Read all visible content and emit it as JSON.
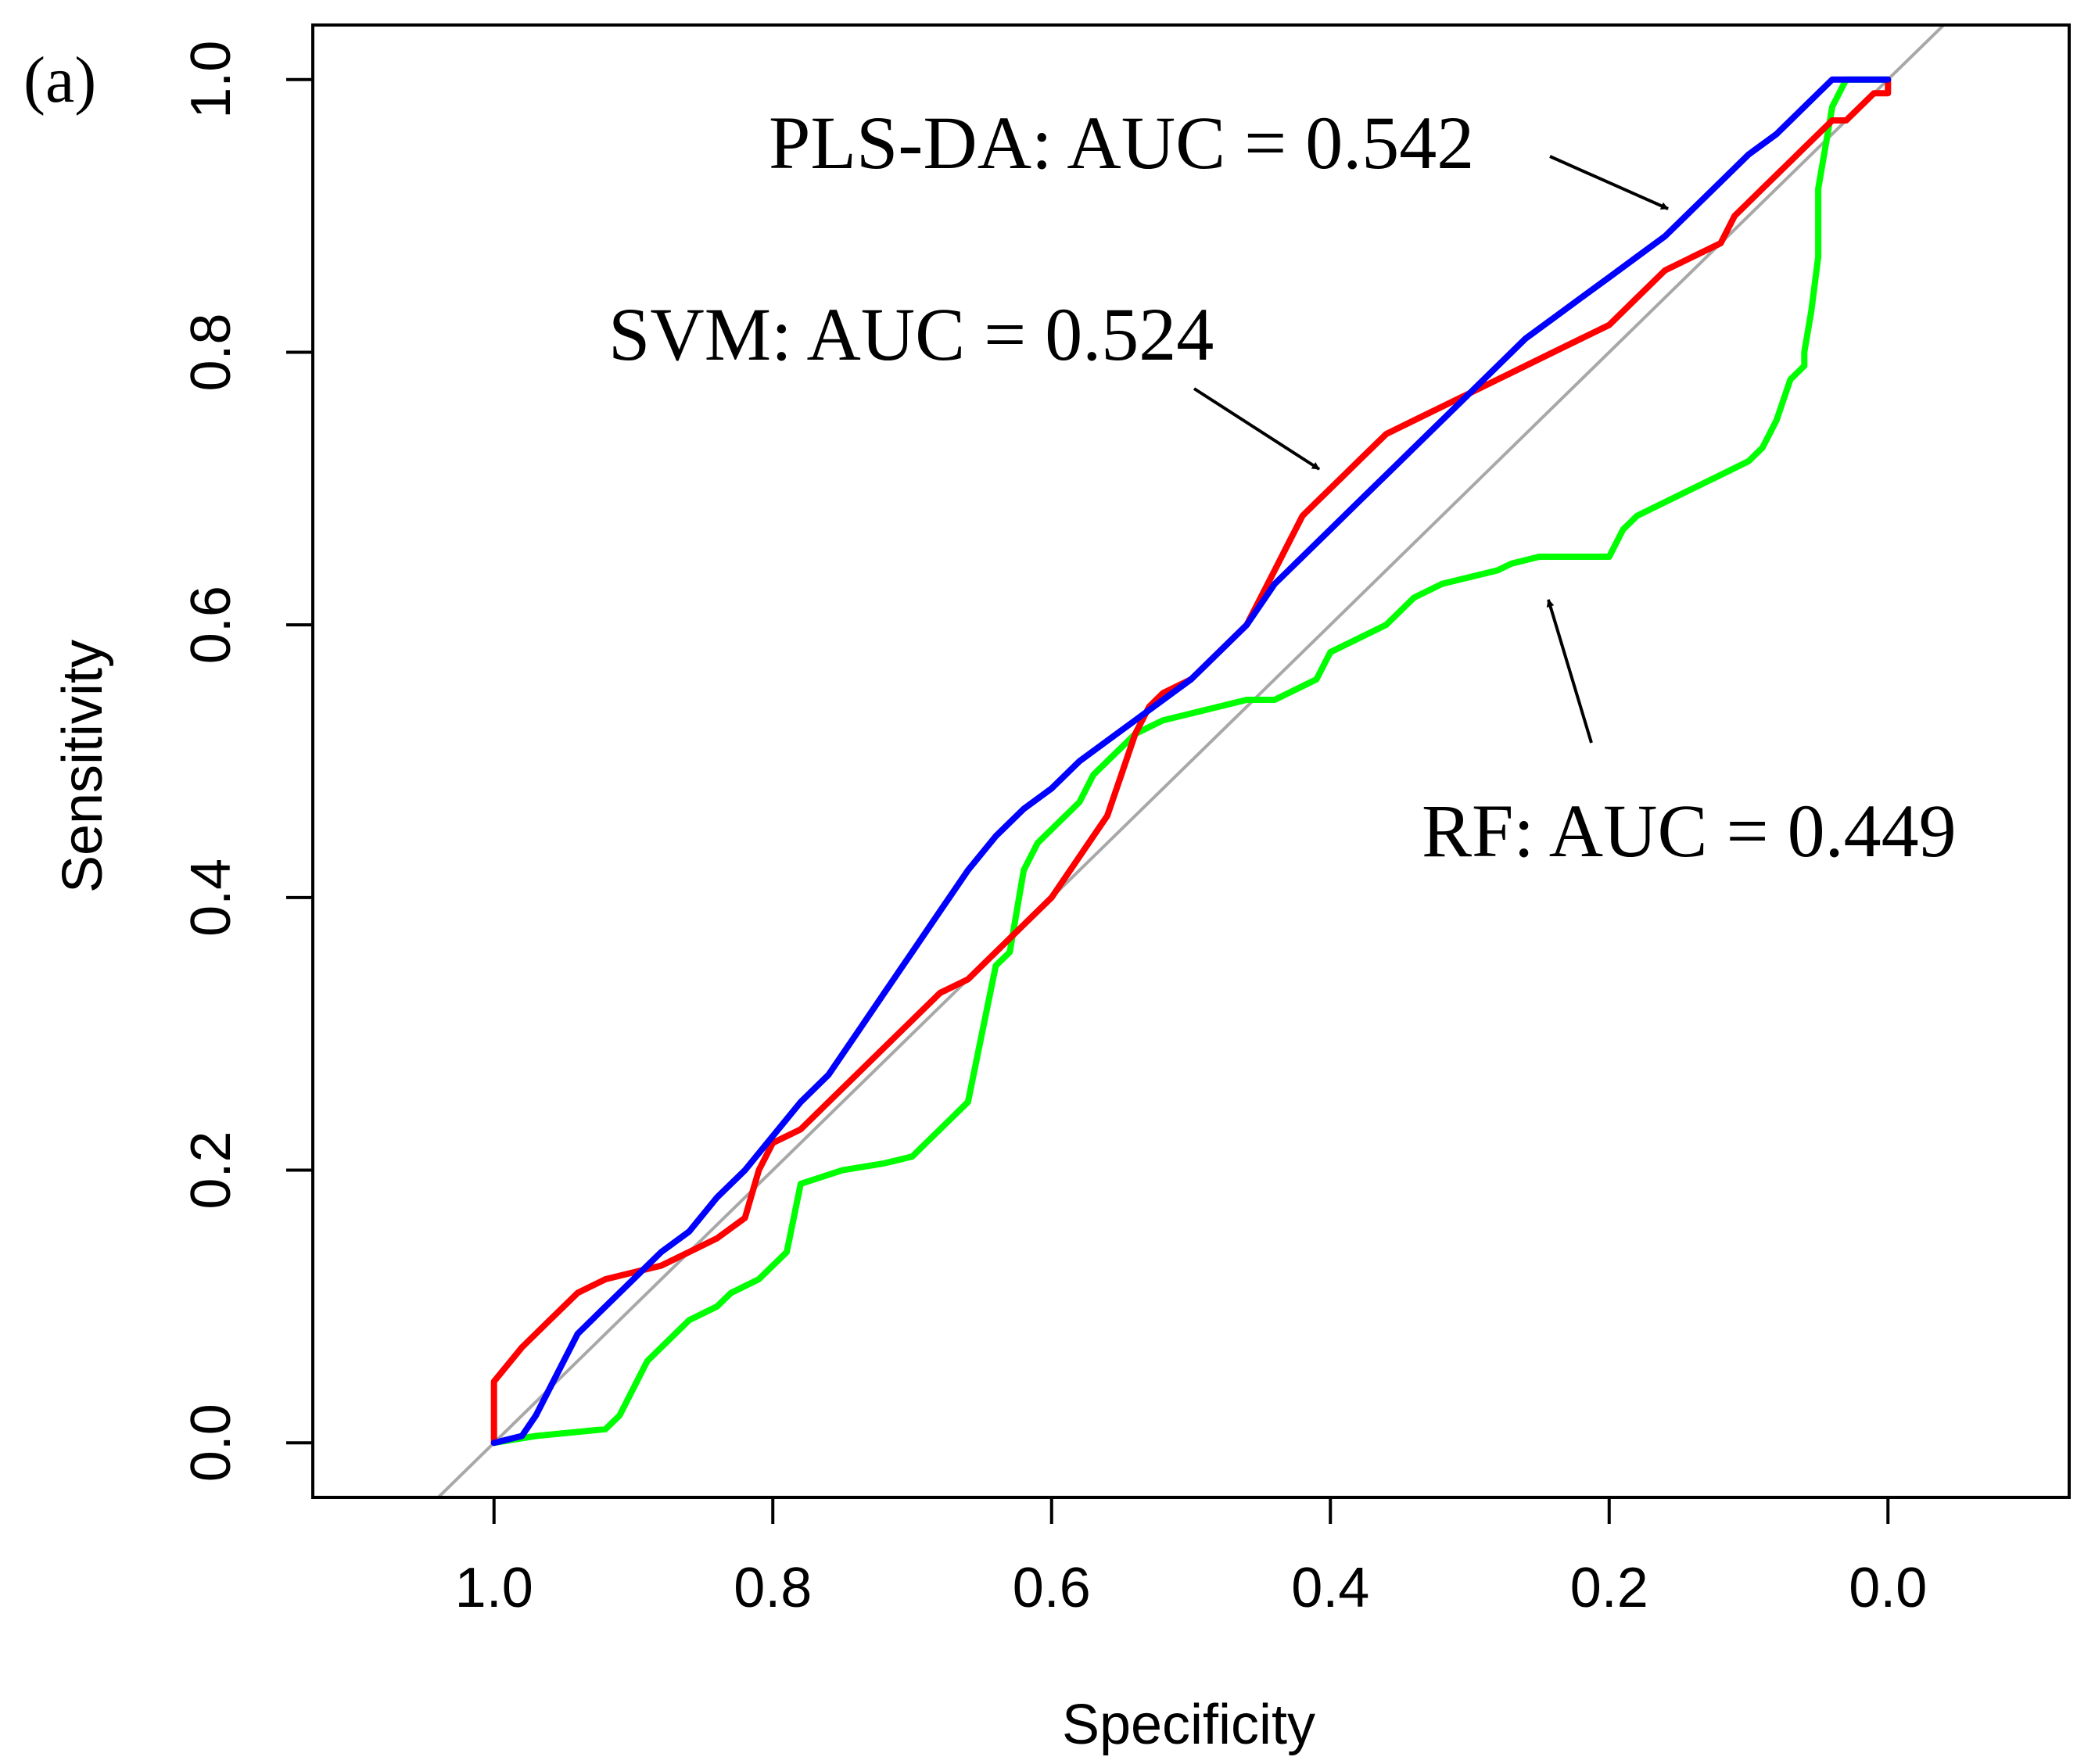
{
  "panel_label": "(a)",
  "chart_data": {
    "type": "line",
    "title": "",
    "xlabel": "Specificity",
    "ylabel": "Sensitivity",
    "x_reversed": true,
    "xlim": [
      1.13,
      -0.13
    ],
    "ylim": [
      -0.04,
      1.04
    ],
    "xticks": [
      1.0,
      0.8,
      0.6,
      0.4,
      0.2,
      0.0
    ],
    "xtick_labels": [
      "1.0",
      "0.8",
      "0.6",
      "0.4",
      "0.2",
      "0.0"
    ],
    "yticks": [
      0.0,
      0.2,
      0.4,
      0.6,
      0.8,
      1.0
    ],
    "ytick_labels": [
      "0.0",
      "0.2",
      "0.4",
      "0.6",
      "0.8",
      "1.0"
    ],
    "reference_line": {
      "from": [
        1.0,
        0.0
      ],
      "to": [
        0.0,
        1.0
      ],
      "color": "#a8a8a8"
    },
    "series": [
      {
        "name": "RF",
        "color": "#00ff00",
        "x": [
          1.0,
          0.97,
          0.92,
          0.91,
          0.9,
          0.89,
          0.88,
          0.87,
          0.86,
          0.85,
          0.84,
          0.83,
          0.82,
          0.81,
          0.8,
          0.79,
          0.78,
          0.75,
          0.72,
          0.7,
          0.69,
          0.68,
          0.66,
          0.65,
          0.64,
          0.63,
          0.62,
          0.61,
          0.6,
          0.59,
          0.58,
          0.57,
          0.56,
          0.55,
          0.54,
          0.53,
          0.52,
          0.5,
          0.48,
          0.46,
          0.44,
          0.43,
          0.41,
          0.4,
          0.38,
          0.36,
          0.35,
          0.34,
          0.32,
          0.28,
          0.27,
          0.25,
          0.2,
          0.19,
          0.18,
          0.16,
          0.14,
          0.12,
          0.1,
          0.09,
          0.08,
          0.07,
          0.06,
          0.06,
          0.055,
          0.05,
          0.05,
          0.045,
          0.04,
          0.03,
          0.0
        ],
        "y": [
          0.0,
          0.005,
          0.01,
          0.02,
          0.04,
          0.06,
          0.07,
          0.08,
          0.09,
          0.095,
          0.1,
          0.11,
          0.115,
          0.12,
          0.13,
          0.14,
          0.19,
          0.2,
          0.205,
          0.21,
          0.22,
          0.23,
          0.25,
          0.3,
          0.35,
          0.36,
          0.42,
          0.44,
          0.45,
          0.46,
          0.47,
          0.49,
          0.5,
          0.51,
          0.52,
          0.525,
          0.53,
          0.535,
          0.54,
          0.545,
          0.545,
          0.55,
          0.56,
          0.58,
          0.59,
          0.6,
          0.61,
          0.62,
          0.63,
          0.64,
          0.645,
          0.65,
          0.65,
          0.67,
          0.68,
          0.69,
          0.7,
          0.71,
          0.72,
          0.73,
          0.75,
          0.78,
          0.79,
          0.8,
          0.83,
          0.87,
          0.92,
          0.95,
          0.98,
          1.0,
          1.0
        ]
      },
      {
        "name": "SVM",
        "color": "#ff0000",
        "x": [
          1.0,
          1.0,
          0.98,
          0.96,
          0.94,
          0.92,
          0.9,
          0.88,
          0.86,
          0.84,
          0.82,
          0.81,
          0.8,
          0.79,
          0.78,
          0.76,
          0.74,
          0.72,
          0.7,
          0.68,
          0.66,
          0.64,
          0.62,
          0.6,
          0.58,
          0.56,
          0.55,
          0.54,
          0.53,
          0.52,
          0.5,
          0.48,
          0.46,
          0.45,
          0.44,
          0.43,
          0.42,
          0.41,
          0.4,
          0.39,
          0.38,
          0.36,
          0.34,
          0.32,
          0.3,
          0.28,
          0.26,
          0.24,
          0.22,
          0.2,
          0.18,
          0.16,
          0.14,
          0.12,
          0.11,
          0.1,
          0.09,
          0.08,
          0.07,
          0.06,
          0.05,
          0.04,
          0.03,
          0.02,
          0.01,
          0.0,
          0.0
        ],
        "y": [
          0.0,
          0.045,
          0.07,
          0.09,
          0.11,
          0.12,
          0.125,
          0.13,
          0.14,
          0.15,
          0.165,
          0.2,
          0.22,
          0.225,
          0.23,
          0.25,
          0.27,
          0.29,
          0.31,
          0.33,
          0.34,
          0.36,
          0.38,
          0.4,
          0.43,
          0.46,
          0.49,
          0.52,
          0.54,
          0.55,
          0.56,
          0.58,
          0.6,
          0.62,
          0.64,
          0.66,
          0.68,
          0.69,
          0.7,
          0.71,
          0.72,
          0.74,
          0.75,
          0.76,
          0.77,
          0.78,
          0.79,
          0.8,
          0.81,
          0.82,
          0.84,
          0.86,
          0.87,
          0.88,
          0.9,
          0.91,
          0.92,
          0.93,
          0.94,
          0.95,
          0.96,
          0.97,
          0.97,
          0.98,
          0.99,
          0.99,
          1.0
        ]
      },
      {
        "name": "PLS-DA",
        "color": "#0000ff",
        "x": [
          1.0,
          0.98,
          0.97,
          0.96,
          0.95,
          0.94,
          0.92,
          0.9,
          0.88,
          0.86,
          0.84,
          0.82,
          0.8,
          0.78,
          0.76,
          0.74,
          0.72,
          0.7,
          0.68,
          0.66,
          0.64,
          0.62,
          0.6,
          0.58,
          0.56,
          0.54,
          0.52,
          0.5,
          0.48,
          0.46,
          0.44,
          0.42,
          0.4,
          0.38,
          0.36,
          0.34,
          0.32,
          0.3,
          0.28,
          0.26,
          0.24,
          0.22,
          0.2,
          0.18,
          0.16,
          0.14,
          0.12,
          0.1,
          0.08,
          0.06,
          0.05,
          0.04,
          0.03,
          0.0
        ],
        "y": [
          0.0,
          0.005,
          0.02,
          0.04,
          0.06,
          0.08,
          0.1,
          0.12,
          0.14,
          0.155,
          0.18,
          0.2,
          0.225,
          0.25,
          0.27,
          0.3,
          0.33,
          0.36,
          0.39,
          0.42,
          0.445,
          0.465,
          0.48,
          0.5,
          0.515,
          0.53,
          0.545,
          0.56,
          0.58,
          0.6,
          0.63,
          0.65,
          0.67,
          0.69,
          0.71,
          0.73,
          0.75,
          0.77,
          0.79,
          0.81,
          0.825,
          0.84,
          0.855,
          0.87,
          0.885,
          0.905,
          0.925,
          0.945,
          0.96,
          0.98,
          0.99,
          1.0,
          1.0,
          1.0
        ]
      }
    ],
    "annotations": [
      {
        "name": "PLS-DA",
        "text": "PLS-DA: AUC = 0.542"
      },
      {
        "name": "SVM",
        "text": "SVM: AUC = 0.524"
      },
      {
        "name": "RF",
        "text": "RF: AUC = 0.449"
      }
    ]
  }
}
